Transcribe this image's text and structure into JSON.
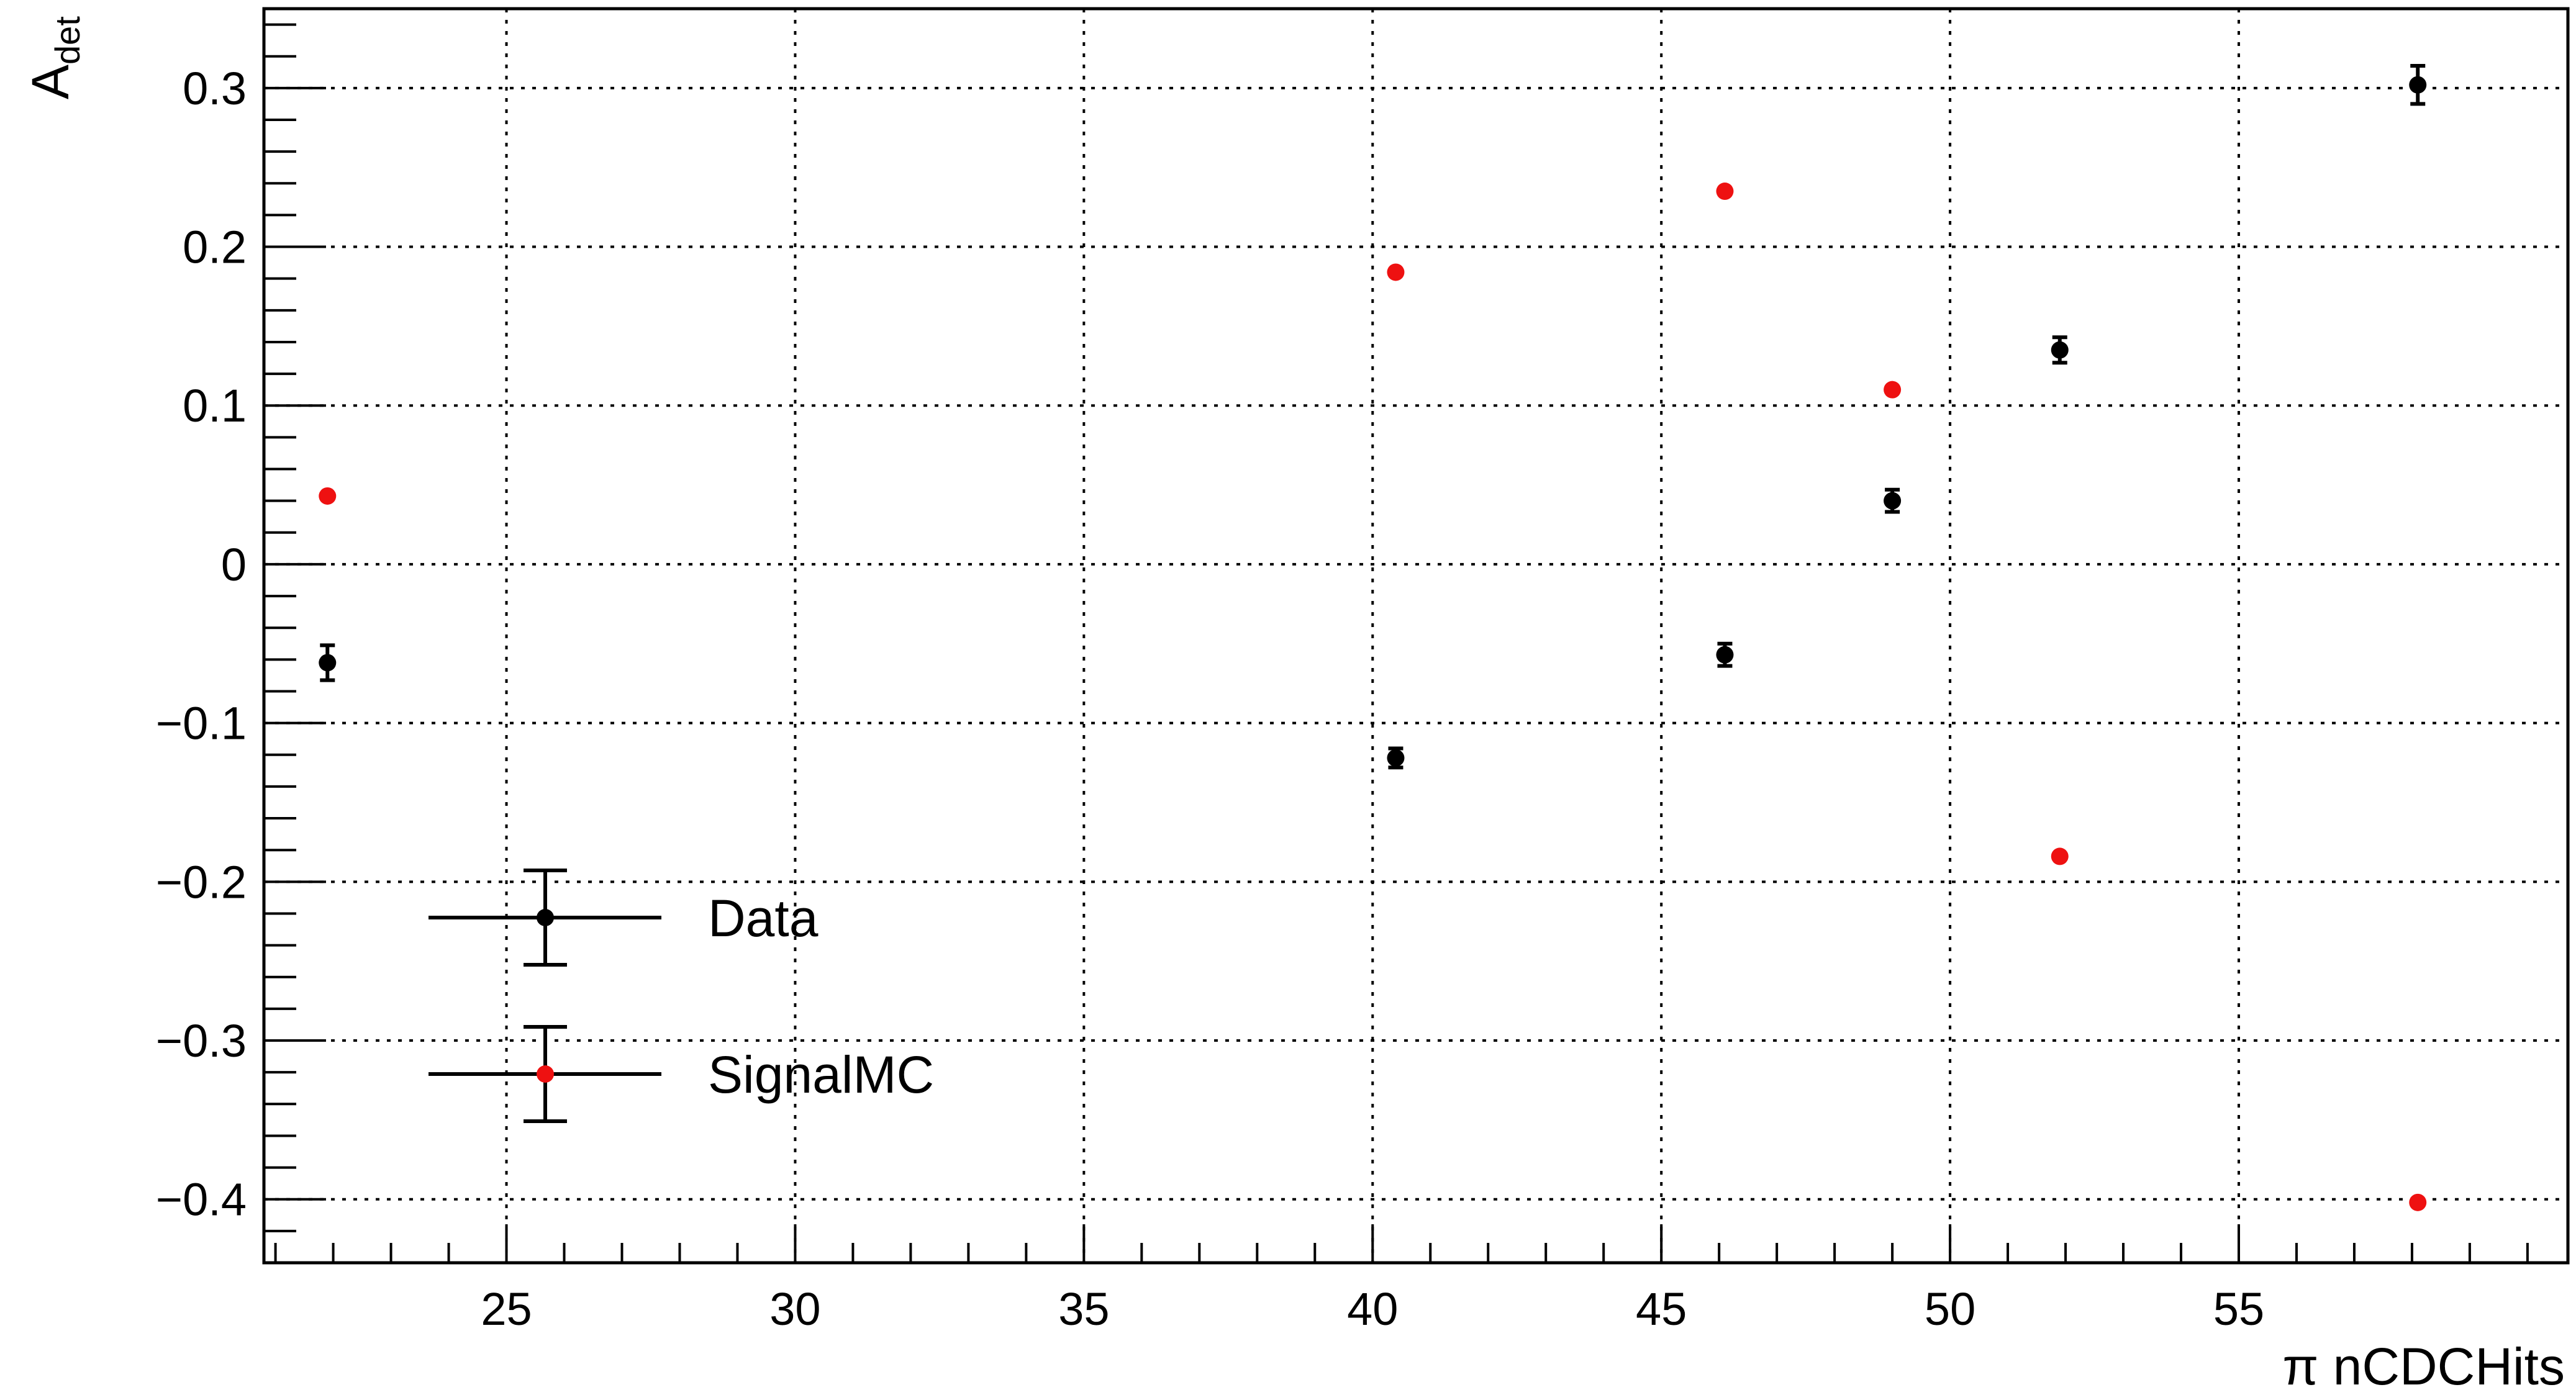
{
  "chart_data": {
    "type": "scatter",
    "xlabel": "π nCDCHits",
    "ylabel": "A",
    "ylabel_subscript": "det",
    "xlim": [
      20.8,
      60.7
    ],
    "ylim": [
      -0.44,
      0.35
    ],
    "xticks": [
      25,
      30,
      35,
      40,
      45,
      50,
      55
    ],
    "xtick_labels": [
      "25",
      "30",
      "35",
      "40",
      "45",
      "50",
      "55"
    ],
    "yticks": [
      -0.4,
      -0.3,
      -0.2,
      -0.1,
      0,
      0.1,
      0.2,
      0.3
    ],
    "ytick_labels": [
      "−0.4",
      "−0.3",
      "−0.2",
      "−0.1",
      "0",
      "0.1",
      "0.2",
      "0.3"
    ],
    "grid": true,
    "legend_position": "bottom-left",
    "series": [
      {
        "name": "Data",
        "color": "#000000",
        "x": [
          21.9,
          40.4,
          46.1,
          49.0,
          51.9,
          58.1
        ],
        "y": [
          -0.062,
          -0.122,
          -0.057,
          0.04,
          0.135,
          0.302
        ],
        "yerr": [
          0.011,
          0.006,
          0.007,
          0.007,
          0.008,
          0.012
        ]
      },
      {
        "name": "SignalMC",
        "color": "#ee1111",
        "x": [
          21.9,
          40.4,
          46.1,
          49.0,
          51.9,
          58.1
        ],
        "y": [
          0.043,
          0.184,
          0.235,
          0.11,
          -0.184,
          -0.402
        ],
        "yerr": [
          0,
          0,
          0,
          0,
          0,
          0
        ]
      }
    ]
  }
}
